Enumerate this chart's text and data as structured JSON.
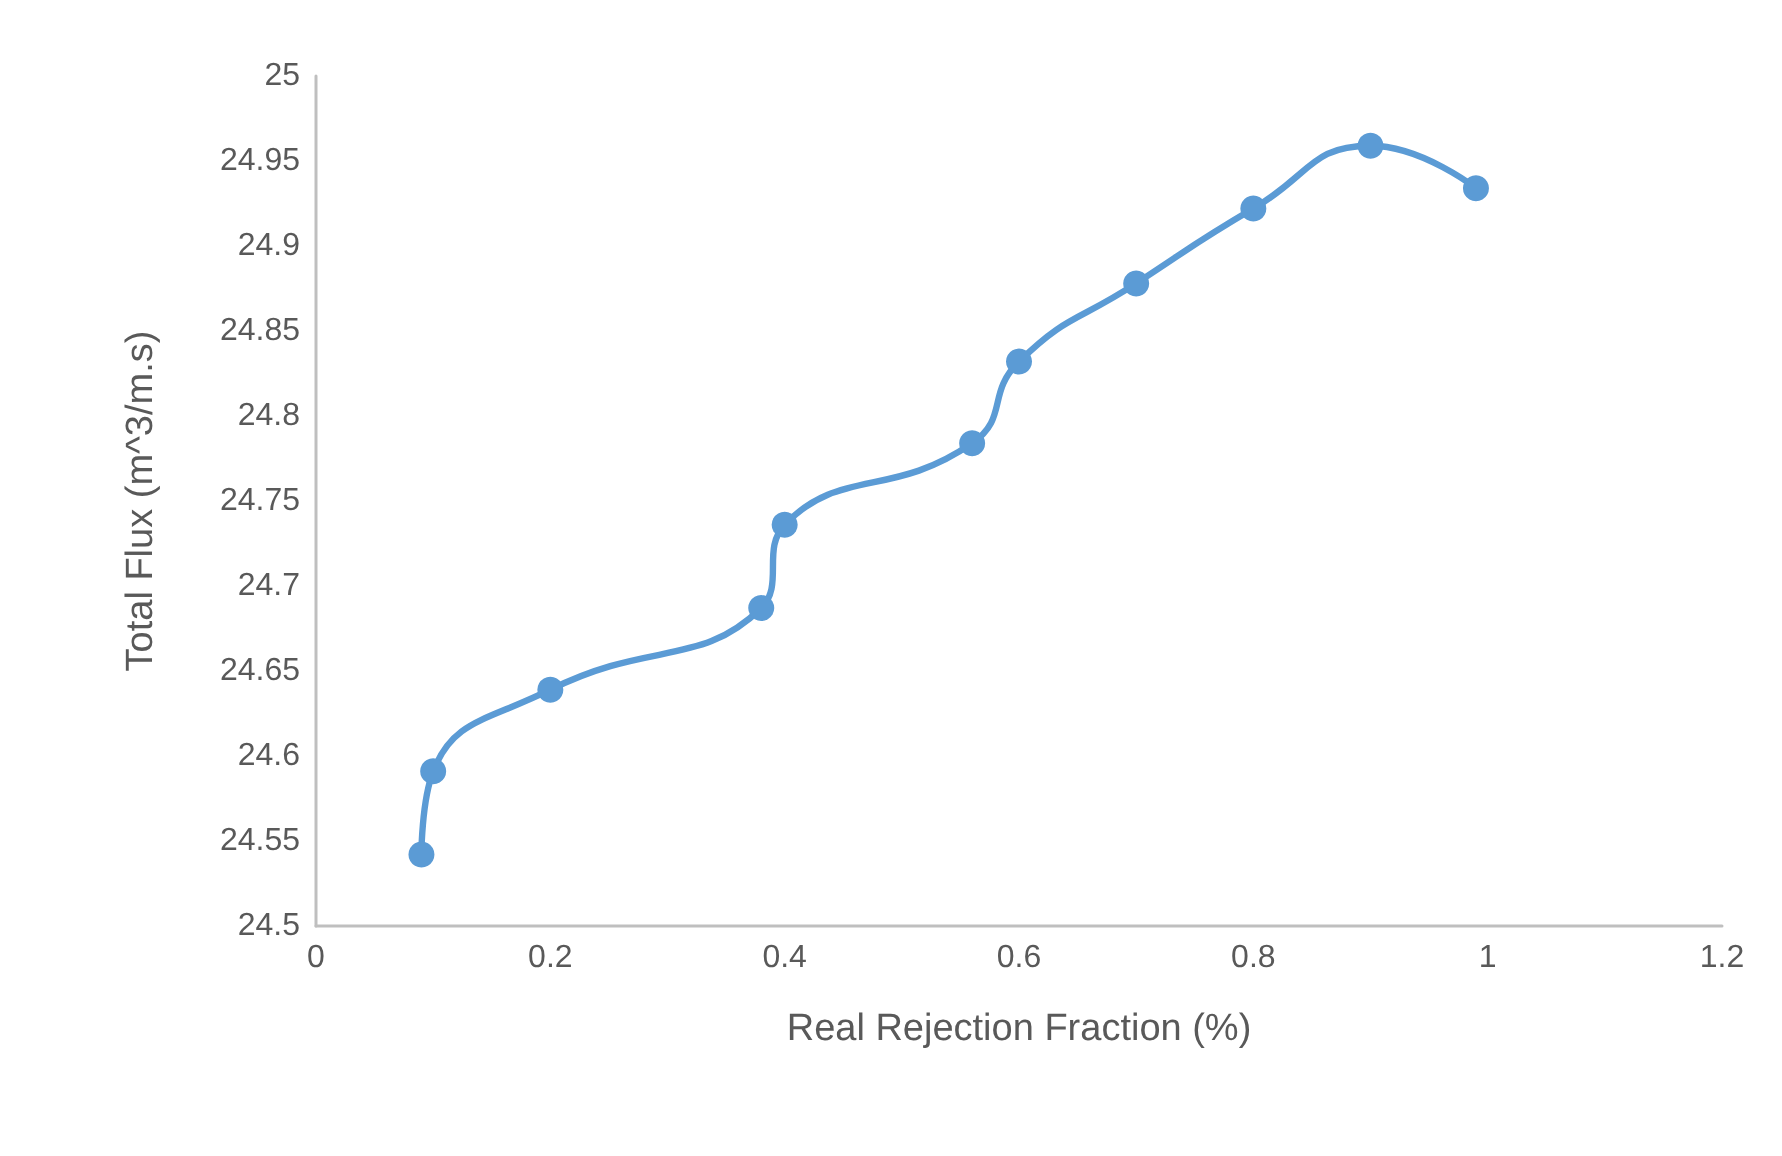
{
  "chart_data": {
    "type": "line",
    "xlabel": "Real Rejection Fraction (%)",
    "ylabel": "Total Flux (m^3/m.s)",
    "x": [
      0.09,
      0.1,
      0.2,
      0.38,
      0.4,
      0.56,
      0.6,
      0.7,
      0.8,
      0.9,
      0.99
    ],
    "series": [
      {
        "color": "#5b9bd5",
        "values": [
          24.542,
          24.591,
          24.639,
          24.687,
          24.736,
          24.784,
          24.832,
          24.878,
          24.922,
          24.959,
          24.934
        ]
      }
    ],
    "xlim": [
      0,
      1.2
    ],
    "xticks": [
      0,
      0.2,
      0.4,
      0.6,
      0.8,
      1,
      1.2
    ],
    "ylim": [
      24.5,
      25
    ],
    "yticks": [
      24.5,
      24.55,
      24.6,
      24.65,
      24.7,
      24.75,
      24.8,
      24.85,
      24.9,
      24.95,
      25
    ],
    "grid": false,
    "marker": "circle",
    "line_style": "solid"
  }
}
